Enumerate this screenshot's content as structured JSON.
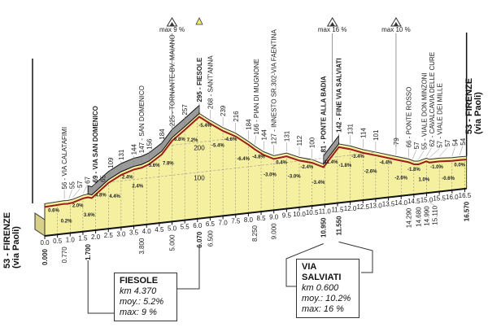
{
  "chart_data": {
    "type": "area",
    "title": "",
    "xlabel": "",
    "ylabel": "",
    "xlim": [
      0,
      16.57
    ],
    "ylim": [
      0,
      300
    ],
    "grid": true,
    "y_grid_labels": [
      "100",
      "200"
    ],
    "x_ticks": [
      "0.0",
      "0.5",
      "1.0",
      "1.5",
      "2.0",
      "2.5",
      "3.0",
      "3.5",
      "4.0",
      "4.5",
      "5.0",
      "5.5",
      "6.0",
      "6.5",
      "7.0",
      "7.5",
      "8.0",
      "8.5",
      "9.0",
      "9.5",
      "10.0",
      "10.5",
      "11.0",
      "11.5",
      "12.0",
      "12.5",
      "13.0",
      "13.5",
      "14.0",
      "14.5",
      "15.0",
      "15.5",
      "16.0",
      "16.5"
    ],
    "profile": [
      [
        0,
        53
      ],
      [
        0.77,
        56
      ],
      [
        0.9,
        55
      ],
      [
        1.1,
        57
      ],
      [
        1.5,
        67
      ],
      [
        1.7,
        69
      ],
      [
        1.85,
        65
      ],
      [
        2.5,
        109
      ],
      [
        3.0,
        131
      ],
      [
        3.5,
        144
      ],
      [
        3.8,
        147
      ],
      [
        4.1,
        156
      ],
      [
        4.6,
        184
      ],
      [
        5.0,
        225
      ],
      [
        5.5,
        257
      ],
      [
        6.07,
        295
      ],
      [
        6.5,
        268
      ],
      [
        7.0,
        239
      ],
      [
        7.5,
        216
      ],
      [
        8.0,
        184
      ],
      [
        8.25,
        166
      ],
      [
        8.6,
        144
      ],
      [
        9.0,
        127
      ],
      [
        9.5,
        131
      ],
      [
        10.0,
        112
      ],
      [
        10.5,
        100
      ],
      [
        10.95,
        81
      ],
      [
        11.55,
        142
      ],
      [
        12.0,
        131
      ],
      [
        12.5,
        114
      ],
      [
        13.0,
        101
      ],
      [
        13.8,
        79
      ],
      [
        14.29,
        66
      ],
      [
        14.5,
        57
      ],
      [
        14.68,
        55
      ],
      [
        14.99,
        62
      ],
      [
        15.11,
        57
      ],
      [
        15.5,
        57
      ],
      [
        16.0,
        54
      ],
      [
        16.3,
        54
      ],
      [
        16.57,
        53
      ]
    ],
    "waypoints": [
      {
        "km": 0.77,
        "label": "56 - VIA CALATAFIMI"
      },
      {
        "km": 0.95,
        "label": "55"
      },
      {
        "km": 1.1,
        "label": "57"
      },
      {
        "km": 1.5,
        "label": "67"
      },
      {
        "km": 1.7,
        "label": "69 - VIA SAN DOMENICO",
        "bold": true
      },
      {
        "km": 1.9,
        "label": "65"
      },
      {
        "km": 2.5,
        "label": "109"
      },
      {
        "km": 3.0,
        "label": "131"
      },
      {
        "km": 3.5,
        "label": "144"
      },
      {
        "km": 3.8,
        "label": "147 - SAN DOMENICO"
      },
      {
        "km": 4.1,
        "label": "156"
      },
      {
        "km": 4.6,
        "label": "184"
      },
      {
        "km": 5.0,
        "label": "225 - TORNANTE-BV. MAIANO"
      },
      {
        "km": 5.5,
        "label": "257"
      },
      {
        "km": 6.07,
        "label": "295 - FIESOLE",
        "bold": true
      },
      {
        "km": 6.5,
        "label": "268 - SANT'ANNA"
      },
      {
        "km": 7.0,
        "label": "239"
      },
      {
        "km": 7.5,
        "label": "216"
      },
      {
        "km": 8.0,
        "label": "184"
      },
      {
        "km": 8.25,
        "label": "166 - PIAN DI MUGNONE"
      },
      {
        "km": 8.6,
        "label": "144"
      },
      {
        "km": 9.0,
        "label": "127 - INNESTO SR.302-VIA FAENTINA"
      },
      {
        "km": 9.5,
        "label": "131"
      },
      {
        "km": 10.0,
        "label": "112"
      },
      {
        "km": 10.5,
        "label": "100"
      },
      {
        "km": 10.95,
        "label": "81 - PONTE ALLA BADIA",
        "bold": true
      },
      {
        "km": 11.55,
        "label": "142 - FINE VIA SALVIATI",
        "bold": true
      },
      {
        "km": 12.0,
        "label": "131"
      },
      {
        "km": 12.5,
        "label": "114"
      },
      {
        "km": 13.0,
        "label": "101"
      },
      {
        "km": 13.8,
        "label": "79"
      },
      {
        "km": 14.29,
        "label": "66 - PONTE ROSSO"
      },
      {
        "km": 14.45,
        "label": "57"
      },
      {
        "km": 14.68,
        "label": "55 - VIALE DON MINZONI"
      },
      {
        "km": 14.99,
        "label": "62 - CAVALCAVIA DELLE CURE"
      },
      {
        "km": 15.11,
        "label": "57 - VIALE DEI MILLE"
      },
      {
        "km": 15.5,
        "label": "57"
      },
      {
        "km": 16.0,
        "label": "54"
      },
      {
        "km": 16.3,
        "label": "54"
      }
    ],
    "gradients": [
      {
        "km": 0.35,
        "label": "0.6%"
      },
      {
        "km": 0.85,
        "label": "0.2%"
      },
      {
        "km": 1.3,
        "label": "2.0%"
      },
      {
        "km": 1.75,
        "label": "3.6%"
      },
      {
        "km": 2.2,
        "label": "4.8%"
      },
      {
        "km": 2.75,
        "label": "4.4%"
      },
      {
        "km": 3.25,
        "label": "2.4%"
      },
      {
        "km": 3.65,
        "label": "2.4%"
      },
      {
        "km": 4.3,
        "label": "5.6%"
      },
      {
        "km": 4.85,
        "label": "7.8%"
      },
      {
        "km": 5.3,
        "label": "6.8%"
      },
      {
        "km": 5.8,
        "label": "7.2%"
      },
      {
        "km": 6.3,
        "label": "-5.4%"
      },
      {
        "km": 6.8,
        "label": "-5.4%"
      },
      {
        "km": 7.3,
        "label": "-4.6%"
      },
      {
        "km": 7.8,
        "label": "-6.4%"
      },
      {
        "km": 8.4,
        "label": "-4.8%"
      },
      {
        "km": 8.85,
        "label": "-3.0%"
      },
      {
        "km": 9.3,
        "label": "0.4%"
      },
      {
        "km": 9.8,
        "label": "-3.0%"
      },
      {
        "km": 10.3,
        "label": "-2.4%"
      },
      {
        "km": 10.75,
        "label": "-3.4%"
      },
      {
        "km": 11.25,
        "label": "11.4%"
      },
      {
        "km": 11.8,
        "label": "-1.8%"
      },
      {
        "km": 12.3,
        "label": "-3.4%"
      },
      {
        "km": 12.8,
        "label": "-2.6%"
      },
      {
        "km": 13.4,
        "label": "-4.4%"
      },
      {
        "km": 14.0,
        "label": "-2.6%"
      },
      {
        "km": 14.5,
        "label": "-1.8%"
      },
      {
        "km": 14.9,
        "label": "1.0%"
      },
      {
        "km": 15.4,
        "label": "-1.0%"
      },
      {
        "km": 15.85,
        "label": "-0.6%"
      },
      {
        "km": 16.3,
        "label": "0.0%"
      }
    ],
    "distances": [
      {
        "km": 0.0,
        "label": "0.000",
        "bold": true
      },
      {
        "km": 0.77,
        "label": "0.770"
      },
      {
        "km": 1.7,
        "label": "1.700",
        "bold": true
      },
      {
        "km": 3.8,
        "label": "3.800"
      },
      {
        "km": 5.0,
        "label": "5.000"
      },
      {
        "km": 6.07,
        "label": "6.070",
        "bold": true
      },
      {
        "km": 6.5,
        "label": "6.500"
      },
      {
        "km": 8.25,
        "label": "8.250"
      },
      {
        "km": 9.0,
        "label": "9.000"
      },
      {
        "km": 10.95,
        "label": "10.950",
        "bold": true
      },
      {
        "km": 11.55,
        "label": "11.550",
        "bold": true
      },
      {
        "km": 14.29,
        "label": "14.290"
      },
      {
        "km": 14.68,
        "label": "14.680"
      },
      {
        "km": 14.99,
        "label": "14.990"
      },
      {
        "km": 15.11,
        "label": "15.110"
      },
      {
        "km": 16.57,
        "label": "16.570",
        "bold": true
      }
    ],
    "climbs": [
      {
        "km": 5.0,
        "label": "max 9 %"
      },
      {
        "km": 11.3,
        "label": "max 16 %"
      },
      {
        "km": 13.8,
        "label": "max 10 %"
      }
    ],
    "climb_segments": [
      [
        1.7,
        6.07
      ],
      [
        10.95,
        11.55
      ]
    ],
    "colors": {
      "fill": "#f5f0a0",
      "fill_dark": "#d8d08a",
      "road": "#9b1c1c",
      "climb_band": "#9a9a9a",
      "highlight": "#f39a1e"
    }
  },
  "start": {
    "line1": "53 - FIRENZE",
    "line2": "(via Paoli)"
  },
  "finish": {
    "line1": "53 - FIRENZE",
    "line2": "(via Paoli)"
  },
  "boxes": [
    {
      "title": "FIESOLE",
      "km": "km 4.370",
      "avg": "moy.: 5.2%",
      "max": "max: 9 %"
    },
    {
      "title": "VIA SALVIATI",
      "km": "km 0.600",
      "avg": "moy.: 10.2%",
      "max": "max: 16 %"
    }
  ]
}
